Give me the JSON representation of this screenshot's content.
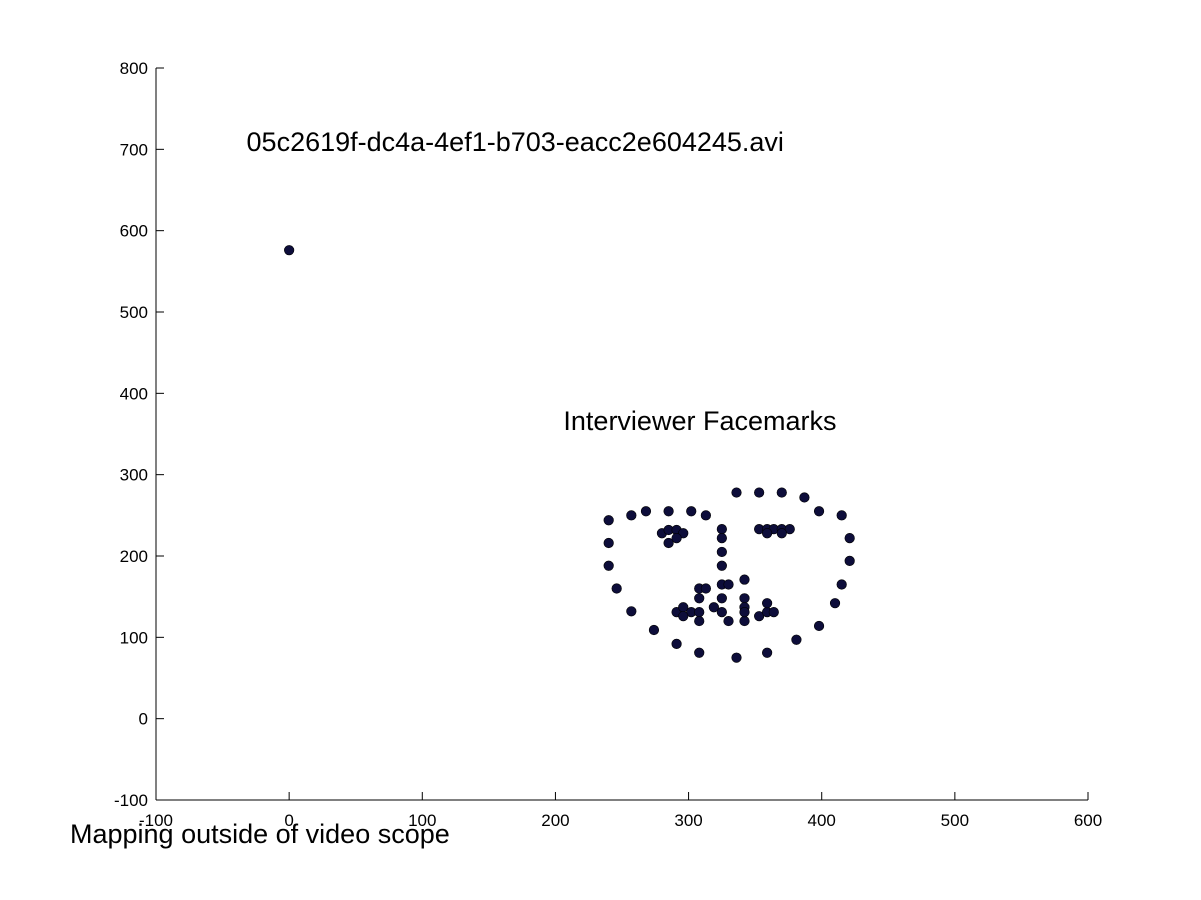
{
  "chart_data": {
    "type": "scatter",
    "title": "",
    "xlabel": "",
    "ylabel": "",
    "xlim": [
      -100,
      600
    ],
    "ylim": [
      -100,
      800
    ],
    "xticks": [
      "-100",
      "0",
      "100",
      "200",
      "300",
      "400",
      "500",
      "600"
    ],
    "yticks": [
      "-100",
      "0",
      "100",
      "200",
      "300",
      "400",
      "500",
      "600",
      "700",
      "800"
    ],
    "grid": false,
    "legend": "none",
    "marker_color": "#0d0d3a",
    "annotations": [
      {
        "id": "filename",
        "text": "05c2619f-dc4a-4ef1-b703-eacc2e604245.avi",
        "x": -32,
        "y": 698
      },
      {
        "id": "facemarks",
        "text": "Interviewer Facemarks",
        "x": 206,
        "y": 355
      }
    ],
    "footer": "Mapping outside of video scope",
    "series": [
      {
        "points": [
          [
            0,
            576
          ],
          [
            240,
            244
          ],
          [
            240,
            216
          ],
          [
            240,
            188
          ],
          [
            246,
            160
          ],
          [
            257,
            132
          ],
          [
            274,
            109
          ],
          [
            291,
            92
          ],
          [
            308,
            81
          ],
          [
            336,
            75
          ],
          [
            359,
            81
          ],
          [
            381,
            97
          ],
          [
            398,
            114
          ],
          [
            410,
            142
          ],
          [
            415,
            165
          ],
          [
            421,
            194
          ],
          [
            421,
            222
          ],
          [
            415,
            250
          ],
          [
            257,
            250
          ],
          [
            268,
            255
          ],
          [
            285,
            255
          ],
          [
            302,
            255
          ],
          [
            313,
            250
          ],
          [
            336,
            278
          ],
          [
            353,
            278
          ],
          [
            370,
            278
          ],
          [
            387,
            272
          ],
          [
            398,
            255
          ],
          [
            325,
            233
          ],
          [
            325,
            222
          ],
          [
            325,
            205
          ],
          [
            325,
            188
          ],
          [
            308,
            160
          ],
          [
            313,
            160
          ],
          [
            325,
            165
          ],
          [
            330,
            165
          ],
          [
            342,
            171
          ],
          [
            280,
            228
          ],
          [
            285,
            232
          ],
          [
            291,
            232
          ],
          [
            296,
            228
          ],
          [
            285,
            216
          ],
          [
            291,
            222
          ],
          [
            353,
            233
          ],
          [
            359,
            233
          ],
          [
            364,
            233
          ],
          [
            370,
            233
          ],
          [
            376,
            233
          ],
          [
            359,
            228
          ],
          [
            370,
            228
          ],
          [
            291,
            131
          ],
          [
            296,
            137
          ],
          [
            302,
            131
          ],
          [
            308,
            131
          ],
          [
            319,
            137
          ],
          [
            325,
            131
          ],
          [
            330,
            120
          ],
          [
            342,
            120
          ],
          [
            353,
            126
          ],
          [
            359,
            131
          ],
          [
            364,
            131
          ],
          [
            296,
            126
          ],
          [
            308,
            120
          ],
          [
            308,
            148
          ],
          [
            325,
            148
          ],
          [
            342,
            148
          ],
          [
            342,
            137
          ],
          [
            342,
            131
          ],
          [
            359,
            142
          ]
        ]
      }
    ]
  }
}
